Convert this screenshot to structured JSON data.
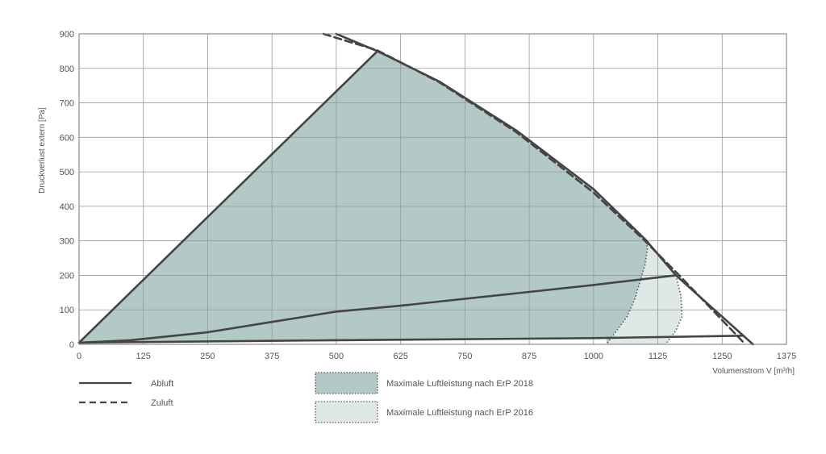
{
  "chart_data": {
    "type": "line",
    "xlabel": "Volumenstrom V [m³/h]",
    "ylabel": "Druckverlust extern [Pa]",
    "xlim": [
      0,
      1375
    ],
    "ylim": [
      0,
      900
    ],
    "x_ticks": [
      0,
      125,
      250,
      375,
      500,
      625,
      750,
      875,
      1000,
      1125,
      1250,
      1375
    ],
    "y_ticks": [
      0,
      100,
      200,
      300,
      400,
      500,
      600,
      700,
      800,
      900
    ],
    "grid": true,
    "series": [
      {
        "name": "Abluft",
        "style": "solid",
        "curves": [
          [
            [
              0,
              5
            ],
            [
              580,
              850
            ]
          ],
          [
            [
              500,
              900
            ],
            [
              580,
              850
            ],
            [
              700,
              762
            ],
            [
              850,
              620
            ],
            [
              1000,
              450
            ],
            [
              1100,
              305
            ],
            [
              1160,
              200
            ],
            [
              1310,
              0
            ]
          ],
          [
            [
              0,
              5
            ],
            [
              100,
              12
            ],
            [
              250,
              35
            ],
            [
              375,
              65
            ],
            [
              500,
              95
            ],
            [
              625,
              112
            ],
            [
              750,
              132
            ],
            [
              875,
              152
            ],
            [
              1000,
              172
            ],
            [
              1160,
              200
            ]
          ],
          [
            [
              0,
              5
            ],
            [
              500,
              12
            ],
            [
              1000,
              18
            ],
            [
              1290,
              25
            ]
          ]
        ]
      },
      {
        "name": "Zuluft",
        "style": "dashed",
        "curves": [
          [
            [
              475,
              900
            ],
            [
              580,
              852
            ],
            [
              700,
              760
            ],
            [
              850,
              615
            ],
            [
              1000,
              440
            ],
            [
              1100,
              300
            ],
            [
              1170,
              195
            ],
            [
              1295,
              0
            ]
          ]
        ]
      }
    ],
    "areas": [
      {
        "name": "Maximale Luftleistung nach ErP 2018",
        "fill": "#b2c9c8",
        "points": [
          [
            0,
            5
          ],
          [
            580,
            850
          ],
          [
            700,
            762
          ],
          [
            850,
            620
          ],
          [
            1000,
            450
          ],
          [
            1100,
            305
          ],
          [
            1105,
            280
          ],
          [
            1100,
            230
          ],
          [
            1090,
            180
          ],
          [
            1080,
            130
          ],
          [
            1065,
            80
          ],
          [
            1040,
            30
          ],
          [
            1025,
            0
          ],
          [
            1025,
            18
          ],
          [
            500,
            12
          ],
          [
            0,
            5
          ]
        ]
      },
      {
        "name": "Maximale Luftleistung nach ErP 2016",
        "fill": "#dde8e7",
        "points": [
          [
            1100,
            305
          ],
          [
            1160,
            200
          ],
          [
            1170,
            140
          ],
          [
            1172,
            80
          ],
          [
            1160,
            40
          ],
          [
            1140,
            0
          ],
          [
            1025,
            0
          ],
          [
            1040,
            30
          ],
          [
            1065,
            80
          ],
          [
            1080,
            130
          ],
          [
            1090,
            180
          ],
          [
            1100,
            230
          ],
          [
            1105,
            280
          ],
          [
            1100,
            305
          ]
        ]
      }
    ],
    "legend": {
      "lines": [
        {
          "label": "Abluft",
          "style": "solid"
        },
        {
          "label": "Zuluft",
          "style": "dashed"
        }
      ],
      "areas": [
        {
          "label": "Maximale Luftleistung nach ErP 2018",
          "fill": "#b2c9c8"
        },
        {
          "label": "Maximale Luftleistung nach ErP 2016",
          "fill": "#dde8e7"
        }
      ],
      "placement": "bottom"
    },
    "colors": {
      "line": "#444444",
      "grid": "#999999",
      "area_2018": "#b2c9c8",
      "area_2016": "#dde8e7"
    }
  }
}
